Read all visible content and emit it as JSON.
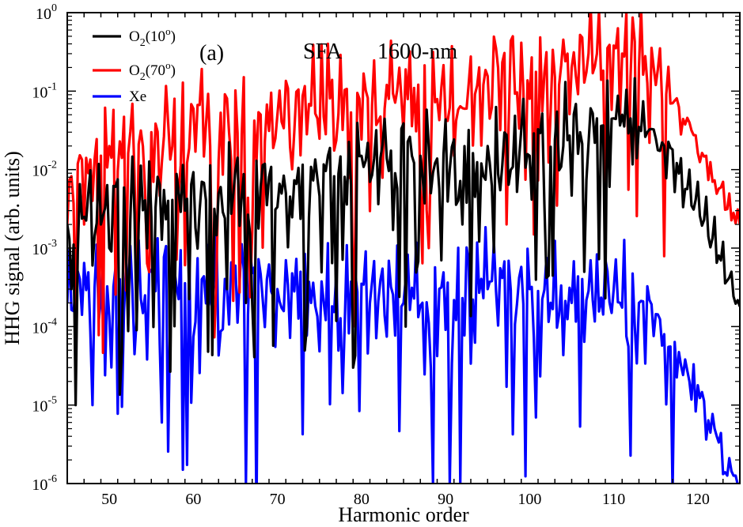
{
  "chart_data": {
    "type": "line",
    "yscale": "log",
    "xlabel": "Harmonic order",
    "ylabel": "HHG signal (arb. units)",
    "xlim": [
      45,
      125
    ],
    "ylim": [
      1e-06,
      1
    ],
    "x_ticks": [
      50,
      60,
      70,
      80,
      90,
      100,
      110,
      120
    ],
    "y_ticks": [
      {
        "value": 1e-06,
        "base": "10",
        "exp": "-6"
      },
      {
        "value": 1e-05,
        "base": "10",
        "exp": "-5"
      },
      {
        "value": 0.0001,
        "base": "10",
        "exp": "-4"
      },
      {
        "value": 0.001,
        "base": "10",
        "exp": "-3"
      },
      {
        "value": 0.01,
        "base": "10",
        "exp": "-2"
      },
      {
        "value": 0.1,
        "base": "10",
        "exp": "-1"
      },
      {
        "value": 1,
        "base": "10",
        "exp": "0"
      }
    ],
    "legend_placement": "top-left",
    "annotations": {
      "panel": "(a)",
      "method": "SFA",
      "wavelength": "1600-nm"
    },
    "series": [
      {
        "name": "O2(10o)",
        "label": {
          "base": "O",
          "sub": "2",
          "open": "(10",
          "sup": "o",
          "close": ")"
        },
        "color": "#000000",
        "envelope_x": [
          45,
          47,
          50,
          55,
          60,
          65,
          70,
          75,
          80,
          85,
          90,
          95,
          100,
          105,
          110,
          113,
          116,
          119,
          122,
          125
        ],
        "envelope_log10": [
          -2.7,
          -2.6,
          -2.5,
          -2.4,
          -2.3,
          -2.2,
          -2.2,
          -2.1,
          -1.9,
          -1.8,
          -2.0,
          -1.9,
          -1.7,
          -1.6,
          -1.35,
          -1.5,
          -1.8,
          -2.35,
          -3.0,
          -3.75
        ],
        "x": [
          45,
          45.5,
          46,
          47,
          48,
          49,
          50,
          52,
          53.3,
          55,
          57,
          59,
          61,
          63,
          64,
          66.2,
          68,
          71,
          73.6,
          76,
          79,
          80,
          81,
          84,
          85.3,
          87,
          89.5,
          90.5,
          92,
          95,
          100,
          104,
          106,
          108,
          110,
          111,
          112,
          113,
          114,
          115,
          116,
          117,
          118,
          119,
          120,
          121,
          122,
          123,
          124,
          125
        ],
        "values": [
          0.002,
          0.0003,
          1e-05,
          0.0025,
          0.0006,
          0.002,
          0.001,
          0.0008,
          9e-05,
          0.0025,
          0.004,
          0.003,
          0.007,
          0.005,
          0.0003,
          0.0002,
          0.006,
          0.005,
          0.0001,
          0.015,
          3e-05,
          0.015,
          0.007,
          0.009,
          0.0001,
          0.015,
          0.0007,
          0.01,
          0.002,
          0.02,
          0.015,
          0.02,
          0.03,
          0.045,
          0.045,
          0.05,
          0.045,
          0.035,
          0.03,
          0.025,
          0.02,
          0.018,
          0.014,
          0.01,
          0.007,
          0.0045,
          0.0025,
          0.0012,
          0.0005,
          0.00018
        ]
      },
      {
        "name": "O2(70o)",
        "label": {
          "base": "O",
          "sub": "2",
          "open": "(70",
          "sup": "o",
          "close": ")"
        },
        "color": "#ff0000",
        "envelope_x": [
          45,
          47,
          50,
          55,
          60,
          65,
          70,
          75,
          80,
          85,
          90,
          95,
          100,
          105,
          110,
          113,
          116,
          119,
          122,
          125
        ],
        "envelope_log10": [
          -2.2,
          -2.1,
          -1.8,
          -1.6,
          -1.4,
          -1.4,
          -1.3,
          -1.1,
          -1.1,
          -1.0,
          -1.2,
          -0.9,
          -0.7,
          -0.6,
          -0.5,
          -0.55,
          -0.9,
          -1.5,
          -2.2,
          -2.7
        ],
        "x": [
          45,
          46,
          47,
          48,
          50,
          53.3,
          55,
          57,
          60,
          62,
          66.2,
          70,
          72,
          76,
          79,
          83,
          88,
          91,
          94,
          96,
          98,
          100,
          103,
          105,
          108,
          110,
          111,
          113,
          115,
          117,
          119,
          121,
          123,
          125
        ],
        "values": [
          0.002,
          0.0001,
          0.002,
          0.004,
          0.02,
          0.0003,
          0.03,
          0.04,
          0.06,
          0.02,
          0.0003,
          0.05,
          0.03,
          0.4,
          0.0001,
          0.12,
          0.001,
          0.015,
          0.2,
          0.35,
          0.5,
          0.08,
          0.15,
          0.2,
          0.3,
          0.38,
          0.3,
          0.2,
          0.12,
          0.07,
          0.04,
          0.015,
          0.007,
          0.002
        ]
      },
      {
        "name": "Xe",
        "label": {
          "base": "Xe"
        },
        "color": "#0000ff",
        "envelope_x": [
          45,
          50,
          55,
          60,
          65,
          70,
          75,
          80,
          85,
          90,
          95,
          100,
          105,
          110,
          112,
          115,
          118,
          121,
          125
        ],
        "envelope_log10": [
          -3.45,
          -3.55,
          -3.45,
          -3.4,
          -3.45,
          -3.5,
          -3.5,
          -3.55,
          -3.55,
          -3.55,
          -3.45,
          -3.5,
          -3.55,
          -3.55,
          -3.6,
          -3.9,
          -4.5,
          -5.1,
          -6.1
        ],
        "x": [
          45,
          46,
          48,
          52,
          55,
          58.7,
          61,
          64,
          66.3,
          70,
          74,
          78,
          81,
          85,
          88.5,
          90.5,
          91.7,
          95,
          100,
          105,
          110,
          113,
          116,
          119,
          122,
          125
        ],
        "values": [
          0.0002,
          0.0003,
          1e-05,
          0.0006,
          0.0005,
          1.5e-06,
          0.0004,
          0.0003,
          1e-06,
          0.0003,
          0.0002,
          0.0001,
          0.0002,
          0.0002,
          1e-06,
          1e-06,
          1e-06,
          0.0003,
          0.0003,
          0.0002,
          0.0003,
          0.0002,
          8e-05,
          2e-05,
          5e-06,
          1e-06
        ]
      }
    ]
  }
}
